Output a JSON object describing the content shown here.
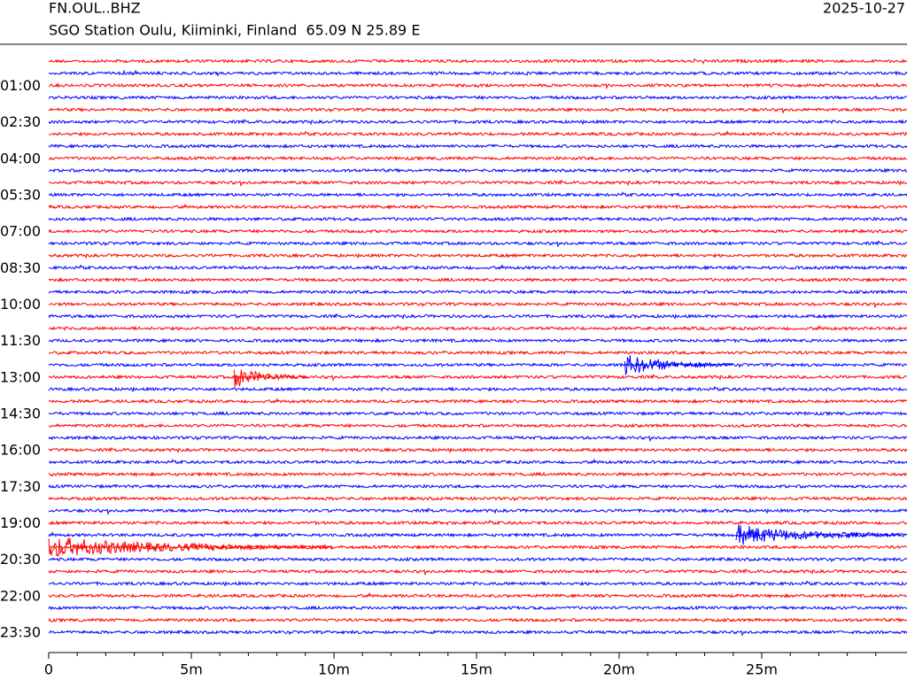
{
  "chart_data": {
    "type": "helicorder",
    "station": "FN.OUL..BHZ",
    "subtitle": "SGO Station Oulu, Kiiminki, Finland  65.09 N 25.89 E",
    "date": "2025-10-27",
    "colors": [
      "#ff0000",
      "#0000ff"
    ],
    "categories": [
      null,
      null,
      "01:00",
      null,
      null,
      "02:30",
      null,
      null,
      "04:00",
      null,
      null,
      "05:30",
      null,
      null,
      "07:00",
      null,
      null,
      "08:30",
      null,
      null,
      "10:00",
      null,
      null,
      "11:30",
      null,
      null,
      "13:00",
      null,
      null,
      "14:30",
      null,
      null,
      "16:00",
      null,
      null,
      "17:30",
      null,
      null,
      "19:00",
      null,
      null,
      "20:30",
      null,
      null,
      "22:00",
      null,
      null,
      "23:30"
    ],
    "xlim": [
      0,
      30
    ],
    "xticks": [
      0,
      {
        "value": 5,
        "label": "5m"
      },
      {
        "value": 10,
        "label": "10m"
      },
      {
        "value": 15,
        "label": "15m"
      },
      {
        "value": 20,
        "label": "20m"
      },
      {
        "value": 25,
        "label": "25m"
      }
    ],
    "xminorticks": [
      1,
      2,
      3,
      4,
      6,
      7,
      8,
      9,
      11,
      12,
      13,
      14,
      16,
      17,
      18,
      19,
      21,
      22,
      23,
      24,
      26,
      27,
      28,
      29
    ],
    "events": [
      {
        "trace": 25,
        "start": 20.2,
        "end": 24.0
      },
      {
        "trace": 26,
        "start": 6.5,
        "end": 9.0
      },
      {
        "trace": 39,
        "start": 24.1,
        "end": 30
      },
      {
        "trace": 40,
        "start": 0,
        "end": 10
      }
    ]
  }
}
